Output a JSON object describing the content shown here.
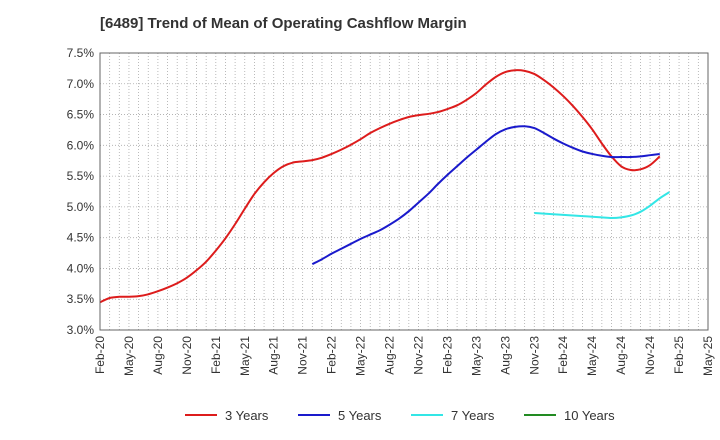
{
  "chart_data": {
    "type": "line",
    "title": "[6489]  Trend of Mean of Operating Cashflow Margin",
    "xlabel": "",
    "ylabel": "",
    "ylim": [
      3.0,
      7.5
    ],
    "grid": true,
    "legend_position": "bottom",
    "y_ticks": [
      "3.0%",
      "3.5%",
      "4.0%",
      "4.5%",
      "5.0%",
      "5.5%",
      "6.0%",
      "6.5%",
      "7.0%",
      "7.5%"
    ],
    "x_ticks": [
      "Feb-20",
      "May-20",
      "Aug-20",
      "Nov-20",
      "Feb-21",
      "May-21",
      "Aug-21",
      "Nov-21",
      "Feb-22",
      "May-22",
      "Aug-22",
      "Nov-22",
      "Feb-23",
      "May-23",
      "Aug-23",
      "Nov-23",
      "Feb-24",
      "May-24",
      "Aug-24",
      "Nov-24",
      "Feb-25",
      "May-25"
    ],
    "series": [
      {
        "name": "3 Years",
        "color": "#dd1c1c",
        "values": [
          3.45,
          3.52,
          3.54,
          3.54,
          3.55,
          3.58,
          3.63,
          3.69,
          3.76,
          3.85,
          3.97,
          4.11,
          4.29,
          4.49,
          4.72,
          4.97,
          5.21,
          5.4,
          5.55,
          5.66,
          5.72,
          5.74,
          5.76,
          5.8,
          5.86,
          5.93,
          6.01,
          6.1,
          6.2,
          6.28,
          6.35,
          6.41,
          6.46,
          6.49,
          6.51,
          6.54,
          6.59,
          6.65,
          6.74,
          6.85,
          6.99,
          7.11,
          7.19,
          7.22,
          7.21,
          7.16,
          7.06,
          6.94,
          6.8,
          6.64,
          6.46,
          6.26,
          6.03,
          5.82,
          5.66,
          5.6,
          5.61,
          5.68,
          5.82
        ]
      },
      {
        "name": "5 Years",
        "color": "#1a1acc",
        "values": [
          null,
          null,
          null,
          null,
          null,
          null,
          null,
          null,
          null,
          null,
          null,
          null,
          null,
          null,
          null,
          null,
          null,
          null,
          null,
          null,
          null,
          null,
          4.07,
          4.15,
          4.24,
          4.32,
          4.4,
          4.48,
          4.55,
          4.62,
          4.71,
          4.81,
          4.93,
          5.07,
          5.21,
          5.37,
          5.52,
          5.66,
          5.8,
          5.93,
          6.06,
          6.18,
          6.26,
          6.3,
          6.31,
          6.28,
          6.2,
          6.11,
          6.03,
          5.96,
          5.9,
          5.86,
          5.83,
          5.81,
          5.81,
          5.81,
          5.82,
          5.84,
          5.86
        ]
      },
      {
        "name": "7 Years",
        "color": "#33e6e6",
        "values": [
          null,
          null,
          null,
          null,
          null,
          null,
          null,
          null,
          null,
          null,
          null,
          null,
          null,
          null,
          null,
          null,
          null,
          null,
          null,
          null,
          null,
          null,
          null,
          null,
          null,
          null,
          null,
          null,
          null,
          null,
          null,
          null,
          null,
          null,
          null,
          null,
          null,
          null,
          null,
          null,
          null,
          null,
          null,
          null,
          null,
          4.9,
          4.89,
          4.88,
          4.87,
          4.86,
          4.85,
          4.84,
          4.83,
          4.82,
          4.83,
          4.86,
          4.92,
          5.02,
          5.14,
          5.24
        ]
      },
      {
        "name": "10 Years",
        "color": "#228b22",
        "values": []
      }
    ]
  }
}
